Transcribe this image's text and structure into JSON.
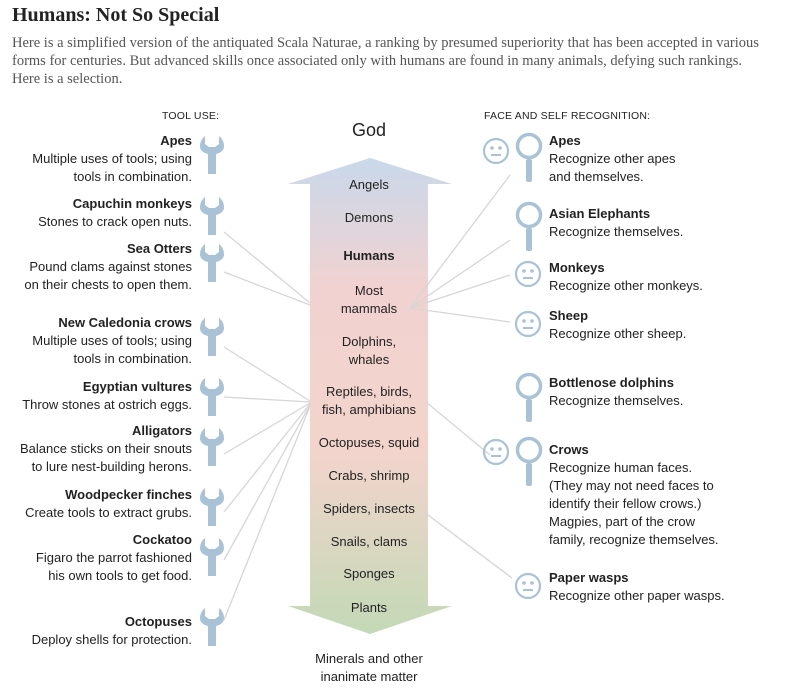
{
  "title": "Humans: Not So Special",
  "intro": "Here is a simplified version of the antiquated Scala Naturae, a ranking by presumed superiority that has been accepted in various forms for centuries. But advanced skills once associated only with humans are found in many animals, defying such rankings. Here is a selection.",
  "tool_use": {
    "heading": "TOOL USE:",
    "items": [
      {
        "title": "Apes",
        "desc": "Multiple uses of tools; using\ntools in combination."
      },
      {
        "title": "Capuchin monkeys",
        "desc": "Stones to crack open nuts."
      },
      {
        "title": "Sea Otters",
        "desc": "Pound clams against stones\non their chests to open them."
      },
      {
        "title": "New Caledonia crows",
        "desc": "Multiple uses of tools; using\ntools in combination."
      },
      {
        "title": "Egyptian vultures",
        "desc": "Throw stones at ostrich eggs."
      },
      {
        "title": "Alligators",
        "desc": "Balance sticks on their snouts\nto lure nest-building herons."
      },
      {
        "title": "Woodpecker finches",
        "desc": "Create tools to extract grubs."
      },
      {
        "title": "Cockatoo",
        "desc": "Figaro the parrot fashioned\nhis own tools to get food."
      },
      {
        "title": "Octopuses",
        "desc": "Deploy shells for protection."
      }
    ]
  },
  "scale": {
    "top": "God",
    "levels": [
      "Angels",
      "Demons",
      "Humans",
      "Most\nmammals",
      "Dolphins,\nwhales",
      "Reptiles, birds,\nfish, amphibians",
      "Octopuses, squid",
      "Crabs, shrimp",
      "Spiders, insects",
      "Snails, clams",
      "Sponges",
      "Plants"
    ],
    "bottom": "Minerals and other\ninanimate matter"
  },
  "self_recognition": {
    "heading": "FACE AND SELF RECOGNITION:",
    "items": [
      {
        "title": "Apes",
        "desc": "Recognize other apes\nand themselves.",
        "icons": [
          "face-icon",
          "mirror-icon"
        ]
      },
      {
        "title": "Asian Elephants",
        "desc": "Recognize themselves.",
        "icons": [
          "mirror-icon"
        ]
      },
      {
        "title": "Monkeys",
        "desc": "Recognize other monkeys.",
        "icons": [
          "face-icon"
        ]
      },
      {
        "title": "Sheep",
        "desc": "Recognize other sheep.",
        "icons": [
          "face-icon"
        ]
      },
      {
        "title": "Bottlenose dolphins",
        "desc": "Recognize themselves.",
        "icons": [
          "mirror-icon"
        ]
      },
      {
        "title": "Crows",
        "desc": "Recognize human faces.\n(They may not need faces to\nidentify their fellow crows.)\nMagpies, part of the crow\nfamily, recognize themselves.",
        "icons": [
          "face-icon",
          "mirror-icon"
        ]
      },
      {
        "title": "Paper wasps",
        "desc": "Recognize other paper wasps.",
        "icons": [
          "face-icon"
        ]
      }
    ]
  },
  "colors": {
    "arrow_top": "#c9d8ea",
    "arrow_mid": "#f2cfcb",
    "arrow_bottom": "#c3d9b6",
    "icon": "#a9c2d6",
    "connector": "#d4d4d4"
  }
}
